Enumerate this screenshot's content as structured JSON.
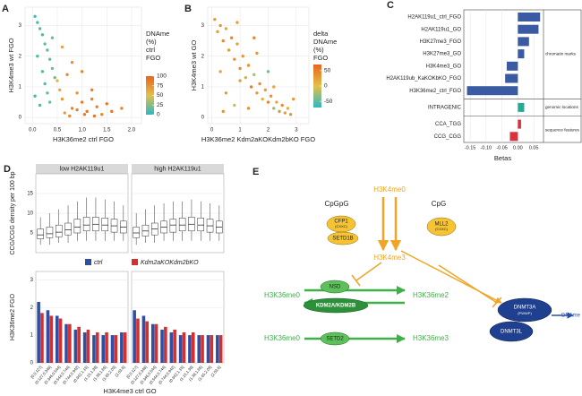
{
  "chart_data": [
    {
      "type": "scatter",
      "panel_label": "A",
      "xlabel": "H3K36me2 ctrl FGO",
      "ylabel": "H3K4me3 wt FGO",
      "x": [
        0.05,
        0.1,
        0.15,
        0.2,
        0.25,
        0.3,
        0.35,
        0.4,
        0.45,
        0.1,
        0.2,
        0.3,
        0.15,
        0.25,
        0.35,
        0.05,
        0.4,
        0.5,
        0.55,
        0.6,
        0.7,
        0.8,
        0.9,
        1.0,
        1.1,
        1.2,
        1.3,
        1.4,
        1.5,
        1.6,
        0.6,
        0.8,
        1.0,
        1.2,
        0.65,
        0.75,
        0.9,
        1.05,
        1.25,
        1.8
      ],
      "y": [
        3.3,
        3.1,
        2.9,
        2.7,
        2.4,
        2.2,
        1.9,
        1.6,
        1.3,
        2.0,
        1.5,
        0.8,
        0.4,
        1.1,
        0.5,
        0.7,
        2.6,
        1.2,
        0.9,
        0.6,
        1.4,
        0.3,
        0.8,
        0.5,
        0.2,
        0.6,
        0.35,
        0.1,
        0.45,
        0.2,
        2.3,
        1.8,
        1.5,
        0.9,
        0.15,
        0.05,
        0.25,
        0.1,
        0.05,
        0.3
      ],
      "color_values": [
        8,
        10,
        12,
        10,
        15,
        12,
        14,
        18,
        20,
        10,
        12,
        15,
        10,
        12,
        18,
        8,
        20,
        55,
        60,
        70,
        80,
        85,
        75,
        88,
        90,
        82,
        85,
        80,
        90,
        92,
        65,
        75,
        80,
        85,
        70,
        78,
        82,
        88,
        90,
        85
      ],
      "xlim": [
        -0.15,
        2.2
      ],
      "ylim": [
        -0.2,
        3.6
      ],
      "xticks": [
        {
          "value": 0,
          "label": "0.0"
        },
        {
          "value": 0.5,
          "label": "0.5"
        },
        {
          "value": 1,
          "label": "1.0"
        },
        {
          "value": 1.5,
          "label": "1.5"
        },
        {
          "value": 2,
          "label": "2.0"
        }
      ],
      "yticks": [
        0,
        1,
        2,
        3
      ],
      "grid": true,
      "colorbar": {
        "title_lines": [
          "DNAme",
          "(%)",
          "ctrl",
          "FGO"
        ],
        "clim": [
          0,
          100
        ],
        "colors": [
          "#2bb8c4",
          "#e3c04a",
          "#e8641c"
        ],
        "ticks": [
          100,
          75,
          50,
          25,
          0
        ]
      }
    },
    {
      "type": "scatter",
      "panel_label": "B",
      "xlabel": "H3K36me2 Kdm2aKOKdm2bKO FGO",
      "ylabel": "H3K4me3 wt GO",
      "x": [
        0.1,
        0.2,
        0.3,
        0.4,
        0.5,
        0.6,
        0.7,
        0.8,
        0.9,
        1.0,
        1.1,
        1.2,
        1.3,
        1.4,
        1.5,
        1.6,
        1.7,
        1.8,
        1.9,
        2.0,
        2.1,
        2.2,
        2.3,
        2.4,
        2.5,
        2.6,
        2.7,
        2.8,
        0.3,
        0.5,
        0.8,
        1.0,
        1.3,
        1.6,
        2.0,
        0.4,
        0.9,
        1.5,
        2.2,
        2.9
      ],
      "y": [
        3.2,
        2.8,
        3.0,
        2.5,
        2.9,
        2.2,
        2.6,
        1.9,
        2.4,
        1.6,
        2.0,
        1.3,
        1.7,
        1.0,
        1.4,
        0.8,
        1.1,
        0.6,
        0.9,
        0.5,
        0.7,
        0.3,
        0.5,
        0.2,
        0.4,
        0.15,
        0.3,
        0.1,
        1.5,
        0.8,
        0.4,
        1.2,
        0.3,
        2.1,
        1.5,
        0.2,
        3.1,
        2.6,
        1.0,
        0.6
      ],
      "color_values": [
        30,
        25,
        35,
        40,
        20,
        30,
        45,
        35,
        25,
        40,
        30,
        15,
        35,
        50,
        -20,
        30,
        40,
        10,
        25,
        45,
        35,
        -30,
        20,
        30,
        40,
        25,
        15,
        35,
        20,
        30,
        -10,
        25,
        40,
        30,
        -40,
        35,
        25,
        45,
        20,
        30
      ],
      "xlim": [
        -0.15,
        3.45
      ],
      "ylim": [
        -0.2,
        3.6
      ],
      "xticks": [
        0,
        1,
        2,
        3
      ],
      "yticks": [
        0,
        1,
        2,
        3
      ],
      "grid": true,
      "colorbar": {
        "title_lines": [
          "delta",
          "DNAme",
          "(%)",
          "FGO"
        ],
        "clim": [
          -70,
          70
        ],
        "colors": [
          "#2bb8c4",
          "#e3c04a",
          "#e8641c"
        ],
        "ticks": [
          50,
          0,
          -50
        ]
      }
    },
    {
      "type": "hbar",
      "panel_label": "C",
      "xlabel": "Betas",
      "xlim": [
        -0.17,
        0.075
      ],
      "xticks": [
        -0.15,
        {
          "value": -0.1,
          "label": "-0.10"
        },
        -0.05,
        {
          "value": 0,
          "label": "0.00"
        },
        0.05
      ],
      "grid": true,
      "groups": [
        {
          "label": "chromatin marks",
          "color": "#3a5aa3",
          "categories": [
            "H2AK119u1_ctrl_FGO",
            "H2AK119u1_GO",
            "H3K27me3_FGO",
            "H3K27me3_GO",
            "H3K4me3_GO",
            "H2AK119ub_KaKOKbKO_FGO",
            "H3K36me2_ctrl_FGO"
          ],
          "values": [
            0.07,
            0.065,
            0.035,
            0.02,
            -0.035,
            -0.04,
            -0.16
          ]
        },
        {
          "label": "genomic locations",
          "color": "#2aa893",
          "categories": [
            "INTRAGENIC"
          ],
          "values": [
            0.02
          ]
        },
        {
          "label": "sequence features",
          "color": "#d6333a",
          "categories": [
            "CCA_TGG",
            "CCG_CGG"
          ],
          "values": [
            0.01,
            -0.025
          ]
        }
      ]
    },
    {
      "type": "boxbar",
      "panel_label": "D",
      "ylabel_top": "CCG/CGG density per 100 bp",
      "ylabel_bottom": "H3K36me2 FGO",
      "xlabel": "H3K4me3 ctrl GO",
      "categories": [
        "[0,0.127]",
        "(0.127,0.346]",
        "(0.346,0.544]",
        "(0.544,0.744]",
        "(0.744,0.942]",
        "(0.942,1.15]",
        "(1.15,1.38]",
        "(1.38,1.65]",
        "(1.65,2.03]",
        "(2.03,6]"
      ],
      "ylim_top": [
        0,
        20
      ],
      "yticks_top": [
        5,
        10,
        15
      ],
      "ylim_bottom": [
        0,
        3.3
      ],
      "yticks_bottom": [
        0,
        1,
        2,
        3
      ],
      "legend": [
        {
          "name": "ctrl",
          "color": "#2f4fa5"
        },
        {
          "name": "Kdm2aKOKdm2bKO",
          "color": "#d62f2f"
        }
      ],
      "facets": [
        {
          "title": "low H2AK119u1",
          "box": {
            "lo": [
              2,
              2,
              2.5,
              2.5,
              3,
              3,
              3,
              3,
              3,
              3
            ],
            "q1": [
              3.5,
              3.8,
              4,
              4.5,
              5,
              5.5,
              5.5,
              5.5,
              5.2,
              5
            ],
            "median": [
              4.5,
              4.8,
              5.2,
              5.8,
              6.5,
              7,
              7.2,
              7,
              6.8,
              6.5
            ],
            "q3": [
              6,
              6.5,
              7,
              7.5,
              8.5,
              9,
              9,
              8.8,
              8.5,
              8
            ],
            "hi": [
              9,
              10,
              11,
              12,
              13,
              14,
              14,
              13.5,
              13,
              12
            ]
          },
          "bars": [
            [
              2.2,
              1.9,
              1.7,
              1.4,
              1.2,
              1.1,
              1.0,
              1.0,
              1.0,
              1.1
            ],
            [
              1.8,
              1.7,
              1.6,
              1.4,
              1.3,
              1.2,
              1.1,
              1.1,
              1.0,
              1.1
            ]
          ]
        },
        {
          "title": "high H2AK119u1",
          "box": {
            "lo": [
              2,
              2.5,
              2.5,
              3,
              3,
              3,
              3,
              3,
              3,
              3
            ],
            "q1": [
              3.8,
              4.2,
              4.5,
              5,
              5.2,
              5.5,
              5.5,
              5.5,
              5.2,
              5
            ],
            "median": [
              5,
              5.5,
              6,
              6.5,
              7,
              7,
              7.2,
              7,
              6.8,
              6.5
            ],
            "q3": [
              6.5,
              7,
              7.5,
              8,
              8.5,
              8.8,
              9,
              8.8,
              8.5,
              8
            ],
            "hi": [
              10,
              11,
              12,
              12.5,
              13,
              13,
              13.5,
              13,
              12.5,
              12
            ]
          },
          "bars": [
            [
              1.9,
              1.7,
              1.4,
              1.2,
              1.1,
              1.0,
              1.0,
              1.0,
              1.0,
              1.0
            ],
            [
              1.6,
              1.5,
              1.4,
              1.3,
              1.2,
              1.1,
              1.1,
              1.0,
              1.0,
              1.0
            ]
          ]
        }
      ]
    }
  ],
  "diagram": {
    "panel_label": "E",
    "h3k4me0": "H3K4me0",
    "cpgpg": "CpGpG",
    "cpg": "CpG",
    "cfp1": "CFP1",
    "cfp1_domain": "(CXXC)",
    "setd1b": "SETD1B",
    "mll2": "MLL2",
    "mll2_domain": "(CXXC)",
    "h3k4me3": "H3K4me3",
    "h3k36me0_a": "H3K36me0",
    "nsd": "NSD",
    "h3k36me2": "H3K36me2",
    "kdm2": "KDM2A/KDM2B",
    "h3k36me0_b": "H3K36me0",
    "setd2": "SETD2",
    "h3k36me3": "H3K36me3",
    "dnmt3a": "DNMT3A",
    "dnmt3a_domain": "(PWWP)",
    "dnmt3l": "DNMT3L",
    "dname": "DNAme"
  }
}
